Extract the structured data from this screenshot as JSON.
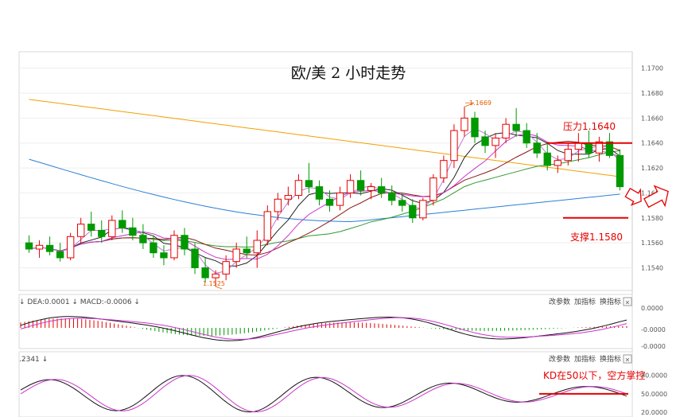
{
  "chart_data": {
    "type": "candlestick",
    "title": "欧/美 2 小时走势",
    "colors": {
      "up": "#e60000",
      "down": "#009900",
      "annotation": "#e60000",
      "ma_orange": "#f2a000",
      "ma_blue": "#2a7fd4",
      "ma_green": "#2e9a2e",
      "ma_darkred": "#8b1a1a",
      "ma_black": "#222222",
      "ma_magenta": "#cc33cc",
      "ma_violet": "#c07ad8",
      "grid": "#eeeeee"
    },
    "price_axis": {
      "ylim": [
        1.1525,
        1.171
      ],
      "ticks": [
        "1.1700",
        "1.1680",
        "1.1660",
        "1.1640",
        "1.1620",
        "1.1600",
        "1.1580",
        "1.1560",
        "1.1540"
      ]
    },
    "candles": [
      [
        1.156,
        1.1566,
        1.1552,
        1.1555
      ],
      [
        1.1555,
        1.1562,
        1.1548,
        1.1558
      ],
      [
        1.1558,
        1.1565,
        1.155,
        1.1553
      ],
      [
        1.1553,
        1.156,
        1.1545,
        1.1548
      ],
      [
        1.1548,
        1.1568,
        1.1546,
        1.1565
      ],
      [
        1.1565,
        1.158,
        1.156,
        1.1575
      ],
      [
        1.1575,
        1.1585,
        1.1565,
        1.157
      ],
      [
        1.157,
        1.1578,
        1.156,
        1.1565
      ],
      [
        1.1565,
        1.1582,
        1.1562,
        1.1578
      ],
      [
        1.1578,
        1.1586,
        1.1568,
        1.1572
      ],
      [
        1.1572,
        1.158,
        1.1562,
        1.1566
      ],
      [
        1.1566,
        1.1575,
        1.1555,
        1.156
      ],
      [
        1.156,
        1.1566,
        1.1548,
        1.1552
      ],
      [
        1.1552,
        1.1558,
        1.1542,
        1.1548
      ],
      [
        1.1548,
        1.157,
        1.1546,
        1.1566
      ],
      [
        1.1566,
        1.1572,
        1.155,
        1.1555
      ],
      [
        1.1555,
        1.156,
        1.1535,
        1.154
      ],
      [
        1.154,
        1.1548,
        1.1528,
        1.1532
      ],
      [
        1.1532,
        1.1538,
        1.1525,
        1.1535
      ],
      [
        1.1535,
        1.155,
        1.153,
        1.1545
      ],
      [
        1.1545,
        1.156,
        1.154,
        1.1555
      ],
      [
        1.1555,
        1.1565,
        1.1548,
        1.1552
      ],
      [
        1.1552,
        1.157,
        1.154,
        1.1562
      ],
      [
        1.1562,
        1.159,
        1.1558,
        1.1585
      ],
      [
        1.1585,
        1.16,
        1.1578,
        1.1595
      ],
      [
        1.1595,
        1.1605,
        1.159,
        1.1598
      ],
      [
        1.1598,
        1.1615,
        1.1595,
        1.161
      ],
      [
        1.161,
        1.1624,
        1.16,
        1.1605
      ],
      [
        1.1605,
        1.161,
        1.159,
        1.1595
      ],
      [
        1.1595,
        1.1602,
        1.1585,
        1.159
      ],
      [
        1.159,
        1.1605,
        1.1586,
        1.16
      ],
      [
        1.16,
        1.1615,
        1.1596,
        1.161
      ],
      [
        1.161,
        1.1618,
        1.1598,
        1.1602
      ],
      [
        1.1602,
        1.1608,
        1.1595,
        1.1605
      ],
      [
        1.1605,
        1.1612,
        1.1596,
        1.16
      ],
      [
        1.16,
        1.1606,
        1.159,
        1.1594
      ],
      [
        1.1594,
        1.16,
        1.1585,
        1.159
      ],
      [
        1.159,
        1.1595,
        1.1576,
        1.158
      ],
      [
        1.158,
        1.1596,
        1.1578,
        1.1594
      ],
      [
        1.1594,
        1.1615,
        1.159,
        1.1612
      ],
      [
        1.1612,
        1.163,
        1.1608,
        1.1626
      ],
      [
        1.1626,
        1.1655,
        1.162,
        1.165
      ],
      [
        1.165,
        1.1669,
        1.1645,
        1.166
      ],
      [
        1.166,
        1.1665,
        1.164,
        1.1645
      ],
      [
        1.1645,
        1.165,
        1.1632,
        1.1638
      ],
      [
        1.1638,
        1.1648,
        1.1628,
        1.1644
      ],
      [
        1.1644,
        1.166,
        1.164,
        1.1655
      ],
      [
        1.1655,
        1.1668,
        1.1645,
        1.165
      ],
      [
        1.165,
        1.1656,
        1.1636,
        1.164
      ],
      [
        1.164,
        1.1648,
        1.1628,
        1.1632
      ],
      [
        1.1632,
        1.164,
        1.1618,
        1.1622
      ],
      [
        1.1622,
        1.163,
        1.1616,
        1.1626
      ],
      [
        1.1626,
        1.164,
        1.1622,
        1.1635
      ],
      [
        1.1635,
        1.1648,
        1.1625,
        1.164
      ],
      [
        1.164,
        1.165,
        1.1628,
        1.1632
      ],
      [
        1.1632,
        1.1645,
        1.1625,
        1.1641
      ],
      [
        1.1641,
        1.1648,
        1.1628,
        1.163
      ],
      [
        1.163,
        1.1635,
        1.1602,
        1.1605
      ]
    ],
    "annotations": {
      "high_label": "1.1669",
      "low_label": "1.1525",
      "resistance_label": "压力1.1640",
      "resistance_value": 1.164,
      "support_label": "支撑1.1580",
      "support_value": 1.158,
      "kd_label": "KD在50以下，空方掌控",
      "kd_level": 50
    },
    "macd_panel": {
      "header": "↓ DEA:0.0001 ↓ MACD:-0.0006 ↓",
      "buttons": [
        "改参数",
        "加指标",
        "换指标"
      ],
      "close": "✕",
      "ticks": [
        "0.0000",
        "-0.0000",
        "-0.0000"
      ]
    },
    "kd_panel": {
      "header": ".2341 ↓",
      "buttons": [
        "改参数",
        "加指标",
        "换指标"
      ],
      "close": "✕",
      "ticks": [
        "80.0000",
        "50.0000",
        "20.0000"
      ],
      "ylim": [
        15,
        95
      ]
    }
  }
}
